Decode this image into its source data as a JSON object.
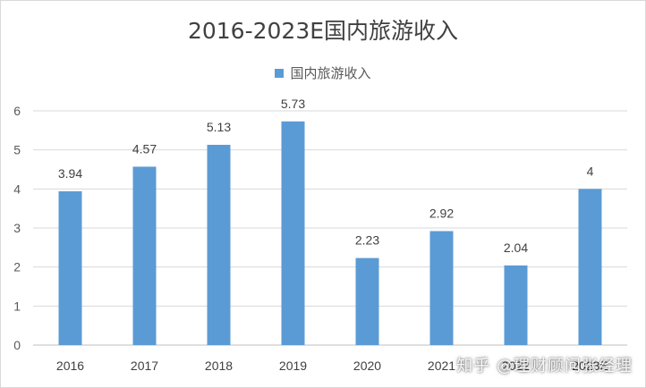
{
  "chart_data": {
    "type": "bar",
    "title": "2016-2023E国内旅游收入",
    "categories": [
      "2016",
      "2017",
      "2018",
      "2019",
      "2020",
      "2021",
      "2022",
      "2023E"
    ],
    "series": [
      {
        "name": "国内旅游收入",
        "values": [
          3.94,
          4.57,
          5.13,
          5.73,
          2.23,
          2.92,
          2.04,
          4
        ],
        "labels": [
          "3.94",
          "4.57",
          "5.13",
          "5.73",
          "2.23",
          "2.92",
          "2.04",
          "4"
        ],
        "color": "#5b9bd5"
      }
    ],
    "ylim": [
      0,
      6
    ],
    "yticks": [
      "0",
      "1",
      "2",
      "3",
      "4",
      "5",
      "6"
    ],
    "grid": true,
    "legend_position": "top"
  },
  "watermark": "知乎 @理财顾问张经理"
}
